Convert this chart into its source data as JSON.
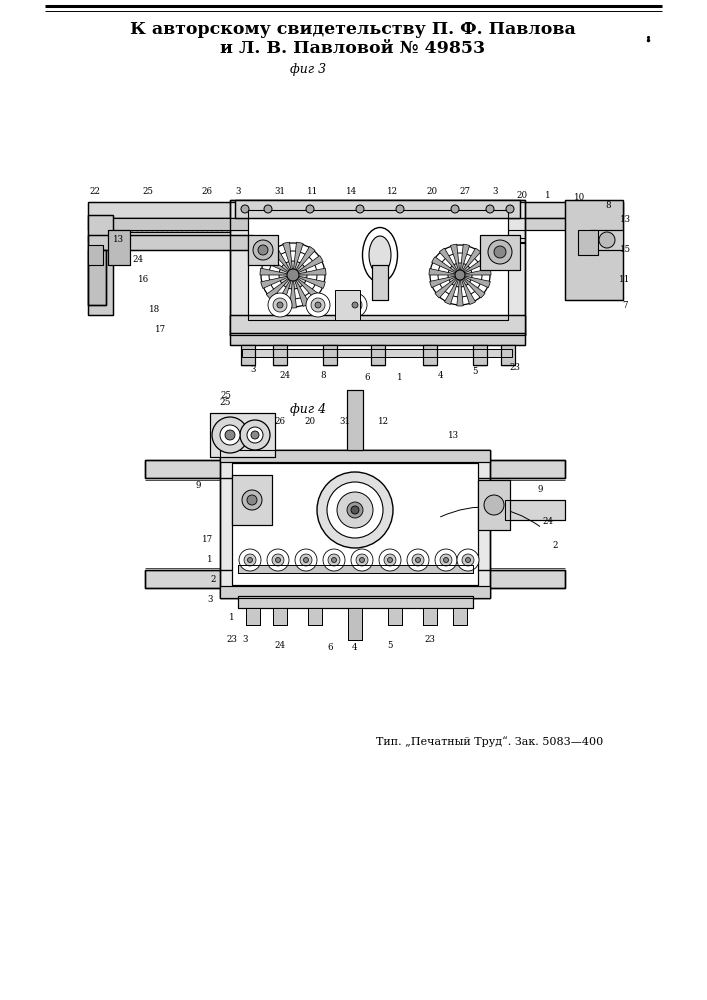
{
  "title_line1": "К авторскому свидетельству П. Ф. Павлова",
  "title_line2": "и Л. В. Павловой № 49853",
  "fig3_label": "фиг 3",
  "fig4_label": "фиг 4",
  "footer": "Тип. „Печатный Труд“. Зак. 5083—400",
  "bg_color": "#ffffff",
  "fg_color": "#000000"
}
